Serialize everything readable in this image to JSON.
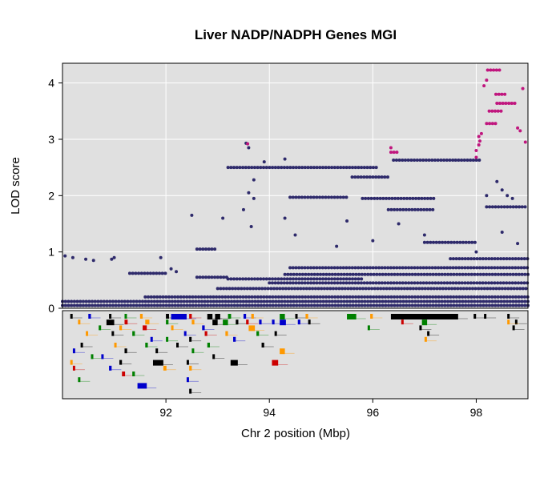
{
  "chart_data": {
    "type": "scatter",
    "title": "Liver NADP/NADPH Genes MGI",
    "xlabel": "Chr 2 position (Mbp)",
    "ylabel": "LOD score",
    "xlim": [
      90.0,
      99.0
    ],
    "ylim": [
      0,
      4.35
    ],
    "x_ticks": [
      "92",
      "94",
      "96",
      "98"
    ],
    "y_ticks": [
      "0",
      "1",
      "2",
      "3",
      "4"
    ],
    "grid": true,
    "colors": {
      "background": "#e0e0e0",
      "grid": "#ffffff",
      "points": "#2e2a6b",
      "highlight": "#c0167e",
      "gene_palette": [
        "#000000",
        "#0000cc",
        "#008000",
        "#ff9900",
        "#cc0000"
      ]
    },
    "series": [
      {
        "color": "#2e2a6b",
        "segments": [
          {
            "x": [
              90.0,
              99.0
            ],
            "y": 0.05
          },
          {
            "x": [
              90.0,
              99.0
            ],
            "y": 0.12
          },
          {
            "x": [
              91.6,
              99.0
            ],
            "y": 0.2
          },
          {
            "x": [
              93.2,
              96.1
            ],
            "y": 2.5
          },
          {
            "x": [
              94.4,
              95.5
            ],
            "y": 1.97
          },
          {
            "x": [
              95.6,
              96.3
            ],
            "y": 2.33
          },
          {
            "x": [
              96.4,
              97.6
            ],
            "y": 2.63
          },
          {
            "x": [
              97.6,
              98.1
            ],
            "y": 2.63
          },
          {
            "x": [
              92.6,
              93.0
            ],
            "y": 1.05
          },
          {
            "x": [
              94.4,
              99.0
            ],
            "y": 0.72
          },
          {
            "x": [
              94.3,
              99.0
            ],
            "y": 0.6
          },
          {
            "x": [
              93.2,
              95.8
            ],
            "y": 0.52
          },
          {
            "x": [
              94.0,
              99.0
            ],
            "y": 0.45
          },
          {
            "x": [
              95.8,
              97.2
            ],
            "y": 1.95
          },
          {
            "x": [
              96.3,
              97.2
            ],
            "y": 1.75
          },
          {
            "x": [
              97.0,
              98.0
            ],
            "y": 1.17
          },
          {
            "x": [
              98.2,
              99.0
            ],
            "y": 1.8
          },
          {
            "x": [
              97.5,
              99.0
            ],
            "y": 0.88
          },
          {
            "x": [
              93.0,
              99.0
            ],
            "y": 0.35
          },
          {
            "x": [
              91.3,
              92.0
            ],
            "y": 0.62
          },
          {
            "x": [
              92.6,
              93.2
            ],
            "y": 0.55
          }
        ],
        "points": [
          [
            90.05,
            0.93
          ],
          [
            90.2,
            0.9
          ],
          [
            90.45,
            0.87
          ],
          [
            90.6,
            0.85
          ],
          [
            90.95,
            0.87
          ],
          [
            91.0,
            0.9
          ],
          [
            91.9,
            0.9
          ],
          [
            92.5,
            1.65
          ],
          [
            93.1,
            1.6
          ],
          [
            93.5,
            1.75
          ],
          [
            93.6,
            2.05
          ],
          [
            93.7,
            1.95
          ],
          [
            93.65,
            1.45
          ],
          [
            93.7,
            2.28
          ],
          [
            93.9,
            2.6
          ],
          [
            94.3,
            2.65
          ],
          [
            93.55,
            2.93
          ],
          [
            93.6,
            2.85
          ],
          [
            94.3,
            1.6
          ],
          [
            94.5,
            1.3
          ],
          [
            95.3,
            1.1
          ],
          [
            95.5,
            1.55
          ],
          [
            96.0,
            1.2
          ],
          [
            96.5,
            1.5
          ],
          [
            97.0,
            1.3
          ],
          [
            98.2,
            2.0
          ],
          [
            98.4,
            2.25
          ],
          [
            98.5,
            2.1
          ],
          [
            98.6,
            2.0
          ],
          [
            98.7,
            1.95
          ],
          [
            98.5,
            1.35
          ],
          [
            98.8,
            1.15
          ],
          [
            98.0,
            1.0
          ],
          [
            92.1,
            0.7
          ],
          [
            92.2,
            0.65
          ]
        ]
      },
      {
        "color": "#c0167e",
        "segments": [
          {
            "x": [
              98.22,
              98.45
            ],
            "y": 4.23
          },
          {
            "x": [
              98.38,
              98.6
            ],
            "y": 3.8
          },
          {
            "x": [
              98.4,
              98.8
            ],
            "y": 3.64
          },
          {
            "x": [
              98.25,
              98.5
            ],
            "y": 3.5
          },
          {
            "x": [
              98.2,
              98.4
            ],
            "y": 3.28
          },
          {
            "x": [
              96.35,
              96.48
            ],
            "y": 2.77
          }
        ],
        "points": [
          [
            98.2,
            4.05
          ],
          [
            98.15,
            3.95
          ],
          [
            98.1,
            3.1
          ],
          [
            98.05,
            3.05
          ],
          [
            98.07,
            2.97
          ],
          [
            98.05,
            2.9
          ],
          [
            98.0,
            2.8
          ],
          [
            98.0,
            2.68
          ],
          [
            98.85,
            3.15
          ],
          [
            98.8,
            3.2
          ],
          [
            98.9,
            3.9
          ],
          [
            98.95,
            2.95
          ],
          [
            96.35,
            2.85
          ],
          [
            93.58,
            2.92
          ]
        ]
      }
    ],
    "genes": [
      {
        "x": 90.15,
        "row": 0,
        "w": 0.04,
        "c": "#000000"
      },
      {
        "x": 90.3,
        "row": 1,
        "w": 0.04,
        "c": "#ff9900"
      },
      {
        "x": 90.5,
        "row": 0,
        "w": 0.05,
        "c": "#0000cc"
      },
      {
        "x": 90.7,
        "row": 2,
        "w": 0.04,
        "c": "#008000"
      },
      {
        "x": 90.45,
        "row": 3,
        "w": 0.04,
        "c": "#ff9900"
      },
      {
        "x": 90.35,
        "row": 5,
        "w": 0.04,
        "c": "#000000"
      },
      {
        "x": 90.2,
        "row": 6,
        "w": 0.04,
        "c": "#0000cc"
      },
      {
        "x": 90.55,
        "row": 7,
        "w": 0.04,
        "c": "#008000"
      },
      {
        "x": 90.15,
        "row": 8,
        "w": 0.04,
        "c": "#ff9900"
      },
      {
        "x": 90.2,
        "row": 9,
        "w": 0.04,
        "c": "#cc0000"
      },
      {
        "x": 90.3,
        "row": 11,
        "w": 0.04,
        "c": "#008000"
      },
      {
        "x": 90.9,
        "row": 0,
        "w": 0.04,
        "c": "#000000"
      },
      {
        "x": 91.2,
        "row": 0,
        "w": 0.04,
        "c": "#008000"
      },
      {
        "x": 90.85,
        "row": 1,
        "w": 0.15,
        "c": "#000000"
      },
      {
        "x": 91.2,
        "row": 1,
        "w": 0.06,
        "c": "#cc0000"
      },
      {
        "x": 91.1,
        "row": 2,
        "w": 0.05,
        "c": "#ff9900"
      },
      {
        "x": 90.95,
        "row": 3,
        "w": 0.04,
        "c": "#000000"
      },
      {
        "x": 91.35,
        "row": 3,
        "w": 0.05,
        "c": "#008000"
      },
      {
        "x": 91.0,
        "row": 5,
        "w": 0.04,
        "c": "#ff9900"
      },
      {
        "x": 91.2,
        "row": 6,
        "w": 0.05,
        "c": "#000000"
      },
      {
        "x": 90.75,
        "row": 7,
        "w": 0.04,
        "c": "#0000cc"
      },
      {
        "x": 91.1,
        "row": 8,
        "w": 0.05,
        "c": "#000000"
      },
      {
        "x": 90.9,
        "row": 9,
        "w": 0.05,
        "c": "#0000cc"
      },
      {
        "x": 91.15,
        "row": 10,
        "w": 0.06,
        "c": "#cc0000"
      },
      {
        "x": 91.35,
        "row": 10,
        "w": 0.05,
        "c": "#008000"
      },
      {
        "x": 91.45,
        "row": 12,
        "w": 0.18,
        "c": "#0000cc"
      },
      {
        "x": 91.5,
        "row": 0,
        "w": 0.05,
        "c": "#ff9900"
      },
      {
        "x": 91.6,
        "row": 1,
        "w": 0.08,
        "c": "#ff9900"
      },
      {
        "x": 91.55,
        "row": 2,
        "w": 0.08,
        "c": "#cc0000"
      },
      {
        "x": 91.7,
        "row": 4,
        "w": 0.04,
        "c": "#0000cc"
      },
      {
        "x": 91.6,
        "row": 5,
        "w": 0.05,
        "c": "#008000"
      },
      {
        "x": 91.8,
        "row": 6,
        "w": 0.04,
        "c": "#000000"
      },
      {
        "x": 91.75,
        "row": 8,
        "w": 0.2,
        "c": "#000000"
      },
      {
        "x": 91.95,
        "row": 9,
        "w": 0.06,
        "c": "#ff9900"
      },
      {
        "x": 92.0,
        "row": 0,
        "w": 0.06,
        "c": "#000000"
      },
      {
        "x": 92.1,
        "row": 0,
        "w": 0.3,
        "c": "#0000cc"
      },
      {
        "x": 92.0,
        "row": 1,
        "w": 0.05,
        "c": "#008000"
      },
      {
        "x": 92.1,
        "row": 2,
        "w": 0.04,
        "c": "#ff9900"
      },
      {
        "x": 92.0,
        "row": 4,
        "w": 0.04,
        "c": "#008000"
      },
      {
        "x": 92.2,
        "row": 5,
        "w": 0.04,
        "c": "#000000"
      },
      {
        "x": 92.45,
        "row": 0,
        "w": 0.05,
        "c": "#cc0000"
      },
      {
        "x": 92.5,
        "row": 1,
        "w": 0.05,
        "c": "#ff9900"
      },
      {
        "x": 92.35,
        "row": 3,
        "w": 0.04,
        "c": "#0000cc"
      },
      {
        "x": 92.45,
        "row": 4,
        "w": 0.04,
        "c": "#000000"
      },
      {
        "x": 92.5,
        "row": 6,
        "w": 0.04,
        "c": "#008000"
      },
      {
        "x": 92.4,
        "row": 8,
        "w": 0.04,
        "c": "#000000"
      },
      {
        "x": 92.45,
        "row": 9,
        "w": 0.05,
        "c": "#ff9900"
      },
      {
        "x": 92.4,
        "row": 11,
        "w": 0.04,
        "c": "#0000cc"
      },
      {
        "x": 92.45,
        "row": 13,
        "w": 0.04,
        "c": "#000000"
      },
      {
        "x": 92.8,
        "row": 0,
        "w": 0.1,
        "c": "#000000"
      },
      {
        "x": 92.9,
        "row": 1,
        "w": 0.1,
        "c": "#000000"
      },
      {
        "x": 92.95,
        "row": 0,
        "w": 0.1,
        "c": "#000000"
      },
      {
        "x": 92.7,
        "row": 2,
        "w": 0.05,
        "c": "#0000cc"
      },
      {
        "x": 92.75,
        "row": 3,
        "w": 0.05,
        "c": "#cc0000"
      },
      {
        "x": 92.8,
        "row": 5,
        "w": 0.05,
        "c": "#008000"
      },
      {
        "x": 92.9,
        "row": 7,
        "w": 0.04,
        "c": "#000000"
      },
      {
        "x": 93.2,
        "row": 0,
        "w": 0.06,
        "c": "#008000"
      },
      {
        "x": 93.1,
        "row": 1,
        "w": 0.1,
        "c": "#008000"
      },
      {
        "x": 93.35,
        "row": 1,
        "w": 0.05,
        "c": "#000000"
      },
      {
        "x": 93.15,
        "row": 3,
        "w": 0.05,
        "c": "#ff9900"
      },
      {
        "x": 93.3,
        "row": 4,
        "w": 0.05,
        "c": "#0000cc"
      },
      {
        "x": 93.25,
        "row": 8,
        "w": 0.14,
        "c": "#000000"
      },
      {
        "x": 93.5,
        "row": 0,
        "w": 0.05,
        "c": "#0000cc"
      },
      {
        "x": 93.65,
        "row": 0,
        "w": 0.05,
        "c": "#ff9900"
      },
      {
        "x": 93.55,
        "row": 1,
        "w": 0.05,
        "c": "#cc0000"
      },
      {
        "x": 93.6,
        "row": 2,
        "w": 0.12,
        "c": "#ff9900"
      },
      {
        "x": 93.8,
        "row": 1,
        "w": 0.05,
        "c": "#0000cc"
      },
      {
        "x": 93.75,
        "row": 3,
        "w": 0.05,
        "c": "#008000"
      },
      {
        "x": 93.85,
        "row": 5,
        "w": 0.05,
        "c": "#000000"
      },
      {
        "x": 94.05,
        "row": 1,
        "w": 0.05,
        "c": "#0000cc"
      },
      {
        "x": 94.2,
        "row": 0,
        "w": 0.1,
        "c": "#008000"
      },
      {
        "x": 94.2,
        "row": 1,
        "w": 0.12,
        "c": "#0000cc"
      },
      {
        "x": 94.1,
        "row": 3,
        "w": 0.04,
        "c": "#000000"
      },
      {
        "x": 94.2,
        "row": 6,
        "w": 0.1,
        "c": "#ff9900"
      },
      {
        "x": 94.05,
        "row": 8,
        "w": 0.12,
        "c": "#cc0000"
      },
      {
        "x": 94.5,
        "row": 0,
        "w": 0.04,
        "c": "#000000"
      },
      {
        "x": 94.55,
        "row": 1,
        "w": 0.05,
        "c": "#0000cc"
      },
      {
        "x": 94.7,
        "row": 0,
        "w": 0.05,
        "c": "#ff9900"
      },
      {
        "x": 94.75,
        "row": 1,
        "w": 0.04,
        "c": "#000000"
      },
      {
        "x": 95.5,
        "row": 0,
        "w": 0.18,
        "c": "#008000"
      },
      {
        "x": 95.95,
        "row": 0,
        "w": 0.05,
        "c": "#ff9900"
      },
      {
        "x": 95.9,
        "row": 2,
        "w": 0.04,
        "c": "#008000"
      },
      {
        "x": 96.35,
        "row": 0,
        "w": 1.3,
        "c": "#000000"
      },
      {
        "x": 96.55,
        "row": 1,
        "w": 0.04,
        "c": "#cc0000"
      },
      {
        "x": 96.95,
        "row": 1,
        "w": 0.1,
        "c": "#008000"
      },
      {
        "x": 96.9,
        "row": 2,
        "w": 0.04,
        "c": "#000000"
      },
      {
        "x": 97.05,
        "row": 3,
        "w": 0.04,
        "c": "#000000"
      },
      {
        "x": 97.0,
        "row": 4,
        "w": 0.04,
        "c": "#ff9900"
      },
      {
        "x": 97.95,
        "row": 0,
        "w": 0.04,
        "c": "#000000"
      },
      {
        "x": 98.15,
        "row": 0,
        "w": 0.04,
        "c": "#000000"
      },
      {
        "x": 98.6,
        "row": 0,
        "w": 0.04,
        "c": "#000000"
      },
      {
        "x": 98.75,
        "row": 1,
        "w": 0.04,
        "c": "#000000"
      },
      {
        "x": 98.6,
        "row": 1,
        "w": 0.04,
        "c": "#ff9900"
      },
      {
        "x": 98.7,
        "row": 2,
        "w": 0.04,
        "c": "#000000"
      }
    ]
  }
}
